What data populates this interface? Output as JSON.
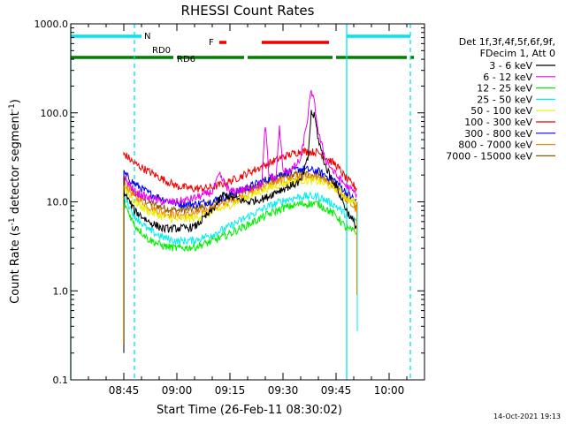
{
  "chart_data": {
    "type": "line",
    "title": "RHESSI Count Rates",
    "xlabel": "Start Time (26-Feb-11 08:30:02)",
    "ylabel": "Count Rate (s",
    "ylabel_sup": "-1",
    "ylabel_tail": " detector segment",
    "ylabel_sup2": "-1",
    "ylabel_end": ")",
    "y_scale": "log",
    "ylim": [
      0.1,
      1000
    ],
    "xlim": [
      "08:30",
      "10:10"
    ],
    "y_ticks": [
      "0.1",
      "1.0",
      "10.0",
      "100.0",
      "1000.0"
    ],
    "x_ticks": [
      "08:45",
      "09:00",
      "09:15",
      "09:30",
      "09:45",
      "10:00"
    ],
    "legend_header": [
      "Det 1f,3f,4f,5f,6f,9f,",
      "FDecim 1, Att 0"
    ],
    "legend_position": "right",
    "timestamp": "14-Oct-2021 19:13",
    "bars": [
      {
        "label": "N",
        "color": "#00e5ee",
        "segments": [
          [
            "08:30",
            "08:50"
          ],
          [
            "09:48",
            "10:06"
          ]
        ]
      },
      {
        "label": "F",
        "color": "#ee0000",
        "segments": [
          [
            "09:12",
            "09:14"
          ],
          [
            "09:24",
            "09:43"
          ]
        ]
      },
      {
        "label": "RD0",
        "color": "#008000",
        "segments": [
          [
            "08:30",
            "08:59"
          ],
          [
            "09:00",
            "09:19"
          ],
          [
            "09:20",
            "09:44"
          ],
          [
            "09:45",
            "10:05"
          ],
          [
            "10:06",
            "10:07"
          ]
        ]
      }
    ],
    "bar_labels": [
      "RD0",
      "RD6"
    ],
    "vlines": [
      {
        "x": "08:30",
        "color": "#00e5ee",
        "style": "solid"
      },
      {
        "x": "08:48",
        "color": "#00e5ee",
        "style": "dashed"
      },
      {
        "x": "09:48",
        "color": "#00e5ee",
        "style": "solid"
      },
      {
        "x": "10:06",
        "color": "#00e5ee",
        "style": "dashed"
      }
    ],
    "series": [
      {
        "name": "3 - 6 keV",
        "color": "#000000",
        "x": [
          "08:45",
          "08:48",
          "08:52",
          "08:56",
          "09:00",
          "09:05",
          "09:10",
          "09:13",
          "09:16",
          "09:20",
          "09:25",
          "09:28",
          "09:30",
          "09:32",
          "09:35",
          "09:37",
          "09:38",
          "09:39",
          "09:40",
          "09:42",
          "09:45",
          "09:48",
          "09:51"
        ],
        "y": [
          13,
          8,
          6,
          5,
          5,
          5.2,
          8,
          12,
          11,
          10,
          11,
          13,
          14,
          15,
          17,
          30,
          100,
          90,
          50,
          25,
          15,
          8,
          5
        ]
      },
      {
        "name": "6 - 12 keV",
        "color": "#ee00ee",
        "x": [
          "08:45",
          "08:48",
          "08:52",
          "08:56",
          "09:00",
          "09:05",
          "09:10",
          "09:12",
          "09:15",
          "09:20",
          "09:24",
          "09:25",
          "09:26",
          "09:28",
          "09:29",
          "09:30",
          "09:31",
          "09:33",
          "09:35",
          "09:37",
          "09:38",
          "09:39",
          "09:40",
          "09:42",
          "09:45",
          "09:48",
          "09:51"
        ],
        "y": [
          19,
          13,
          11,
          10,
          10,
          11,
          13,
          20,
          13,
          14,
          16,
          75,
          20,
          18,
          70,
          22,
          22,
          24,
          30,
          90,
          180,
          120,
          60,
          30,
          20,
          15,
          12
        ]
      },
      {
        "name": "12 - 25 keV",
        "color": "#00ee00",
        "x": [
          "08:45",
          "08:48",
          "08:52",
          "08:56",
          "09:00",
          "09:05",
          "09:10",
          "09:15",
          "09:20",
          "09:25",
          "09:30",
          "09:35",
          "09:40",
          "09:45",
          "09:48",
          "09:51"
        ],
        "y": [
          10,
          5.5,
          3.8,
          3.2,
          3.0,
          3.1,
          3.6,
          4.4,
          5.5,
          7.0,
          8.5,
          9.5,
          9.5,
          7,
          5,
          4.5
        ]
      },
      {
        "name": "25 - 50 keV",
        "color": "#00eeee",
        "x": [
          "08:45",
          "08:48",
          "08:52",
          "08:56",
          "09:00",
          "09:05",
          "09:10",
          "09:15",
          "09:20",
          "09:25",
          "09:30",
          "09:35",
          "09:40",
          "09:45",
          "09:48",
          "09:51"
        ],
        "y": [
          12,
          7,
          4.8,
          4.0,
          3.6,
          3.7,
          4.3,
          5.3,
          6.8,
          8.6,
          10.3,
          11.5,
          11.5,
          9,
          7,
          6
        ]
      },
      {
        "name": "50 - 100 keV",
        "color": "#eeee00",
        "x": [
          "08:45",
          "08:48",
          "08:52",
          "08:56",
          "09:00",
          "09:05",
          "09:10",
          "09:15",
          "09:20",
          "09:25",
          "09:30",
          "09:35",
          "09:40",
          "09:45",
          "09:48",
          "09:51"
        ],
        "y": [
          15,
          10,
          7.8,
          6.8,
          6.3,
          6.6,
          7.6,
          9.2,
          11.3,
          13.8,
          16,
          17.5,
          17,
          14,
          11,
          9.5
        ]
      },
      {
        "name": "100 - 300 keV",
        "color": "#ee0000",
        "x": [
          "08:45",
          "08:48",
          "08:52",
          "08:56",
          "09:00",
          "09:05",
          "09:10",
          "09:15",
          "09:20",
          "09:25",
          "09:30",
          "09:35",
          "09:40",
          "09:45",
          "09:48",
          "09:51"
        ],
        "y": [
          35,
          27,
          22,
          18,
          15,
          14,
          14.5,
          17,
          21,
          26,
          32,
          37,
          36,
          26,
          18,
          14
        ]
      },
      {
        "name": "300 - 800 keV",
        "color": "#0000ee",
        "x": [
          "08:45",
          "08:48",
          "08:52",
          "08:56",
          "09:00",
          "09:05",
          "09:10",
          "09:15",
          "09:20",
          "09:25",
          "09:30",
          "09:35",
          "09:40",
          "09:45",
          "09:48",
          "09:51"
        ],
        "y": [
          21,
          16,
          12.5,
          10.8,
          9.5,
          9.4,
          10.2,
          12,
          14.5,
          17.5,
          21,
          23.5,
          22,
          17,
          12.5,
          10
        ]
      },
      {
        "name": "800 - 7000 keV",
        "color": "#ee8800",
        "x": [
          "08:45",
          "08:48",
          "08:52",
          "08:56",
          "09:00",
          "09:05",
          "09:10",
          "09:15",
          "09:20",
          "09:25",
          "09:30",
          "09:35",
          "09:40",
          "09:45",
          "09:48",
          "09:51"
        ],
        "y": [
          16,
          11.5,
          8.8,
          7.6,
          7.0,
          7.3,
          8.4,
          10,
          12.3,
          15,
          17.5,
          19,
          18.5,
          14.5,
          10.5,
          8
        ]
      },
      {
        "name": "7000 - 15000 keV",
        "color": "#8b5a00",
        "x": [
          "08:45",
          "08:48",
          "08:52",
          "08:56",
          "09:00",
          "09:05",
          "09:10",
          "09:15",
          "09:20",
          "09:25",
          "09:30",
          "09:35",
          "09:40",
          "09:45",
          "09:48",
          "09:51"
        ],
        "y": [
          18,
          12.5,
          9.8,
          8.6,
          8.0,
          8.3,
          9.5,
          11.3,
          13.8,
          16.5,
          19,
          20.5,
          20,
          15.5,
          11,
          8.5
        ]
      }
    ]
  }
}
